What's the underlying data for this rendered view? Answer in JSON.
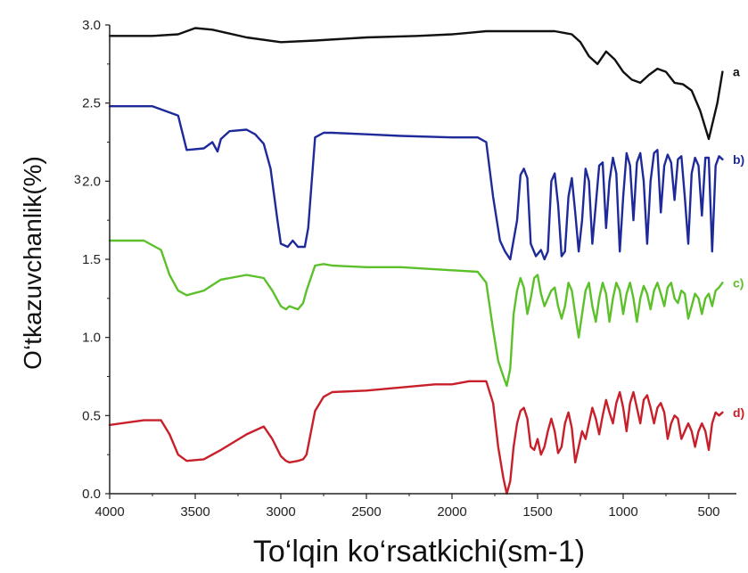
{
  "chart_data": {
    "type": "line",
    "xlabel": "To‘lqin ko‘rsatkichi(sm-1)",
    "ylabel": "O‘tkazuvchanlik(%)",
    "xlim": [
      4000,
      400
    ],
    "ylim": [
      0.0,
      3.0
    ],
    "x_ticks": [
      4000,
      3500,
      3000,
      2500,
      2000,
      1500,
      1000,
      500
    ],
    "x_tick_labels": [
      "4000",
      "3500",
      "3000",
      "2500",
      "2000",
      "1500",
      "1000",
      "500"
    ],
    "y_ticks": [
      0.0,
      0.5,
      1.0,
      1.5,
      2.0,
      2.5,
      3.0
    ],
    "y_tick_labels": [
      "0.0",
      "0.5",
      "1.0",
      "1.5",
      "2.0",
      "2.5",
      "3.0"
    ],
    "stray_label": "3",
    "grid": false,
    "series": [
      {
        "name": "a",
        "color": "#111111",
        "x": [
          4000,
          3750,
          3600,
          3500,
          3400,
          3200,
          3000,
          2800,
          2500,
          2200,
          2000,
          1900,
          1800,
          1600,
          1400,
          1300,
          1250,
          1200,
          1150,
          1100,
          1050,
          1000,
          950,
          900,
          850,
          800,
          750,
          700,
          650,
          600,
          550,
          500,
          450,
          420
        ],
        "y": [
          2.93,
          2.93,
          2.94,
          2.98,
          2.97,
          2.92,
          2.89,
          2.9,
          2.92,
          2.93,
          2.94,
          2.95,
          2.96,
          2.96,
          2.96,
          2.94,
          2.89,
          2.8,
          2.75,
          2.83,
          2.78,
          2.7,
          2.65,
          2.63,
          2.68,
          2.72,
          2.7,
          2.63,
          2.62,
          2.58,
          2.45,
          2.27,
          2.5,
          2.7
        ]
      },
      {
        "name": "b)",
        "color": "#1f2a9a",
        "x": [
          4000,
          3750,
          3600,
          3550,
          3450,
          3400,
          3370,
          3350,
          3300,
          3200,
          3150,
          3100,
          3060,
          3020,
          3000,
          2960,
          2930,
          2900,
          2860,
          2840,
          2800,
          2750,
          2700,
          2500,
          2300,
          2000,
          1850,
          1800,
          1760,
          1720,
          1690,
          1660,
          1620,
          1600,
          1580,
          1560,
          1540,
          1510,
          1480,
          1460,
          1440,
          1420,
          1400,
          1380,
          1360,
          1340,
          1320,
          1300,
          1280,
          1260,
          1240,
          1220,
          1200,
          1180,
          1160,
          1140,
          1120,
          1100,
          1080,
          1060,
          1040,
          1020,
          1000,
          980,
          960,
          940,
          920,
          900,
          880,
          860,
          840,
          820,
          800,
          780,
          760,
          740,
          720,
          700,
          680,
          660,
          640,
          620,
          600,
          580,
          560,
          540,
          520,
          500,
          480,
          460,
          440,
          420
        ],
        "y": [
          2.48,
          2.48,
          2.42,
          2.2,
          2.21,
          2.25,
          2.19,
          2.27,
          2.32,
          2.33,
          2.3,
          2.24,
          2.08,
          1.75,
          1.6,
          1.58,
          1.62,
          1.58,
          1.58,
          1.7,
          2.28,
          2.31,
          2.31,
          2.3,
          2.29,
          2.28,
          2.28,
          2.25,
          1.9,
          1.62,
          1.55,
          1.5,
          1.75,
          2.04,
          2.08,
          2.02,
          1.6,
          1.52,
          1.56,
          1.5,
          1.55,
          2.0,
          2.05,
          1.85,
          1.52,
          1.55,
          1.9,
          2.02,
          1.8,
          1.55,
          1.75,
          2.08,
          2.0,
          1.6,
          1.85,
          2.1,
          2.12,
          1.7,
          2.0,
          2.15,
          2.05,
          1.55,
          1.9,
          2.18,
          2.1,
          1.75,
          2.12,
          2.18,
          2.0,
          1.6,
          2.0,
          2.18,
          2.2,
          1.8,
          2.1,
          2.17,
          2.12,
          1.88,
          2.14,
          2.16,
          1.9,
          1.6,
          2.05,
          2.15,
          2.1,
          1.78,
          2.15,
          2.15,
          1.55,
          2.1,
          2.16,
          2.14
        ]
      },
      {
        "name": "c)",
        "color": "#5cc02a",
        "x": [
          4000,
          3800,
          3700,
          3650,
          3600,
          3550,
          3450,
          3350,
          3200,
          3100,
          3050,
          3000,
          2970,
          2950,
          2900,
          2870,
          2850,
          2800,
          2750,
          2700,
          2500,
          2300,
          2000,
          1850,
          1800,
          1760,
          1730,
          1700,
          1680,
          1660,
          1640,
          1620,
          1600,
          1580,
          1560,
          1540,
          1520,
          1500,
          1480,
          1460,
          1440,
          1420,
          1400,
          1380,
          1360,
          1340,
          1320,
          1300,
          1280,
          1260,
          1240,
          1220,
          1200,
          1180,
          1160,
          1140,
          1120,
          1100,
          1080,
          1060,
          1040,
          1020,
          1000,
          980,
          960,
          940,
          920,
          900,
          880,
          860,
          840,
          820,
          800,
          780,
          760,
          740,
          720,
          700,
          680,
          660,
          640,
          620,
          600,
          580,
          560,
          540,
          520,
          500,
          480,
          460,
          440,
          420
        ],
        "y": [
          1.62,
          1.62,
          1.56,
          1.4,
          1.3,
          1.27,
          1.3,
          1.37,
          1.4,
          1.38,
          1.3,
          1.2,
          1.18,
          1.2,
          1.18,
          1.22,
          1.3,
          1.46,
          1.47,
          1.46,
          1.45,
          1.45,
          1.43,
          1.42,
          1.35,
          1.05,
          0.85,
          0.75,
          0.69,
          0.8,
          1.15,
          1.3,
          1.38,
          1.32,
          1.15,
          1.25,
          1.38,
          1.4,
          1.28,
          1.2,
          1.25,
          1.3,
          1.32,
          1.2,
          1.12,
          1.2,
          1.35,
          1.3,
          1.15,
          1.0,
          1.15,
          1.3,
          1.35,
          1.2,
          1.1,
          1.25,
          1.35,
          1.28,
          1.1,
          1.25,
          1.35,
          1.3,
          1.15,
          1.28,
          1.35,
          1.25,
          1.1,
          1.25,
          1.33,
          1.28,
          1.18,
          1.3,
          1.35,
          1.28,
          1.2,
          1.32,
          1.35,
          1.25,
          1.22,
          1.3,
          1.28,
          1.12,
          1.2,
          1.28,
          1.25,
          1.15,
          1.25,
          1.28,
          1.2,
          1.3,
          1.32,
          1.35
        ]
      },
      {
        "name": "d)",
        "color": "#c8202a",
        "x": [
          4000,
          3800,
          3700,
          3650,
          3600,
          3550,
          3450,
          3350,
          3200,
          3100,
          3050,
          3000,
          2970,
          2950,
          2900,
          2870,
          2850,
          2800,
          2750,
          2700,
          2500,
          2300,
          2100,
          2000,
          1900,
          1850,
          1800,
          1760,
          1730,
          1700,
          1680,
          1660,
          1640,
          1620,
          1600,
          1580,
          1560,
          1540,
          1520,
          1500,
          1480,
          1460,
          1440,
          1420,
          1400,
          1380,
          1360,
          1340,
          1320,
          1300,
          1280,
          1260,
          1240,
          1220,
          1200,
          1180,
          1160,
          1140,
          1120,
          1100,
          1080,
          1060,
          1040,
          1020,
          1000,
          980,
          960,
          940,
          920,
          900,
          880,
          860,
          840,
          820,
          800,
          780,
          760,
          740,
          720,
          700,
          680,
          660,
          640,
          620,
          600,
          580,
          560,
          540,
          520,
          500,
          480,
          460,
          440,
          420
        ],
        "y": [
          0.44,
          0.47,
          0.47,
          0.38,
          0.25,
          0.21,
          0.22,
          0.28,
          0.38,
          0.43,
          0.35,
          0.24,
          0.21,
          0.2,
          0.21,
          0.22,
          0.25,
          0.53,
          0.62,
          0.65,
          0.66,
          0.68,
          0.7,
          0.7,
          0.72,
          0.72,
          0.72,
          0.58,
          0.3,
          0.1,
          0.0,
          0.08,
          0.3,
          0.45,
          0.53,
          0.55,
          0.48,
          0.3,
          0.28,
          0.35,
          0.25,
          0.3,
          0.4,
          0.48,
          0.4,
          0.26,
          0.3,
          0.45,
          0.52,
          0.42,
          0.2,
          0.3,
          0.4,
          0.35,
          0.45,
          0.55,
          0.48,
          0.38,
          0.5,
          0.6,
          0.52,
          0.45,
          0.58,
          0.65,
          0.55,
          0.4,
          0.58,
          0.65,
          0.55,
          0.45,
          0.6,
          0.63,
          0.55,
          0.45,
          0.55,
          0.58,
          0.52,
          0.35,
          0.45,
          0.5,
          0.48,
          0.35,
          0.4,
          0.45,
          0.4,
          0.3,
          0.4,
          0.45,
          0.4,
          0.28,
          0.45,
          0.52,
          0.5,
          0.52
        ]
      }
    ]
  }
}
